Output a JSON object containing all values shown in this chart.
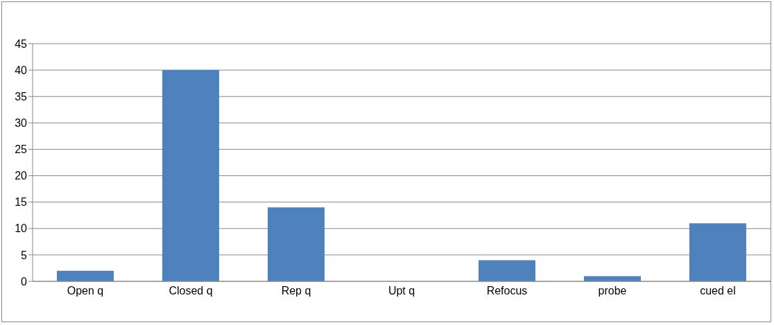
{
  "chart_data": {
    "type": "bar",
    "categories": [
      "Open q",
      "Closed q",
      "Rep q",
      "Upt q",
      "Refocus",
      "probe",
      "cued el"
    ],
    "values": [
      2,
      40,
      14,
      0,
      4,
      1,
      11
    ],
    "color": "#4f81bd",
    "ylim": [
      0,
      45
    ],
    "yticks": [
      0,
      5,
      10,
      15,
      20,
      25,
      30,
      35,
      40,
      45
    ],
    "grid": "y"
  }
}
